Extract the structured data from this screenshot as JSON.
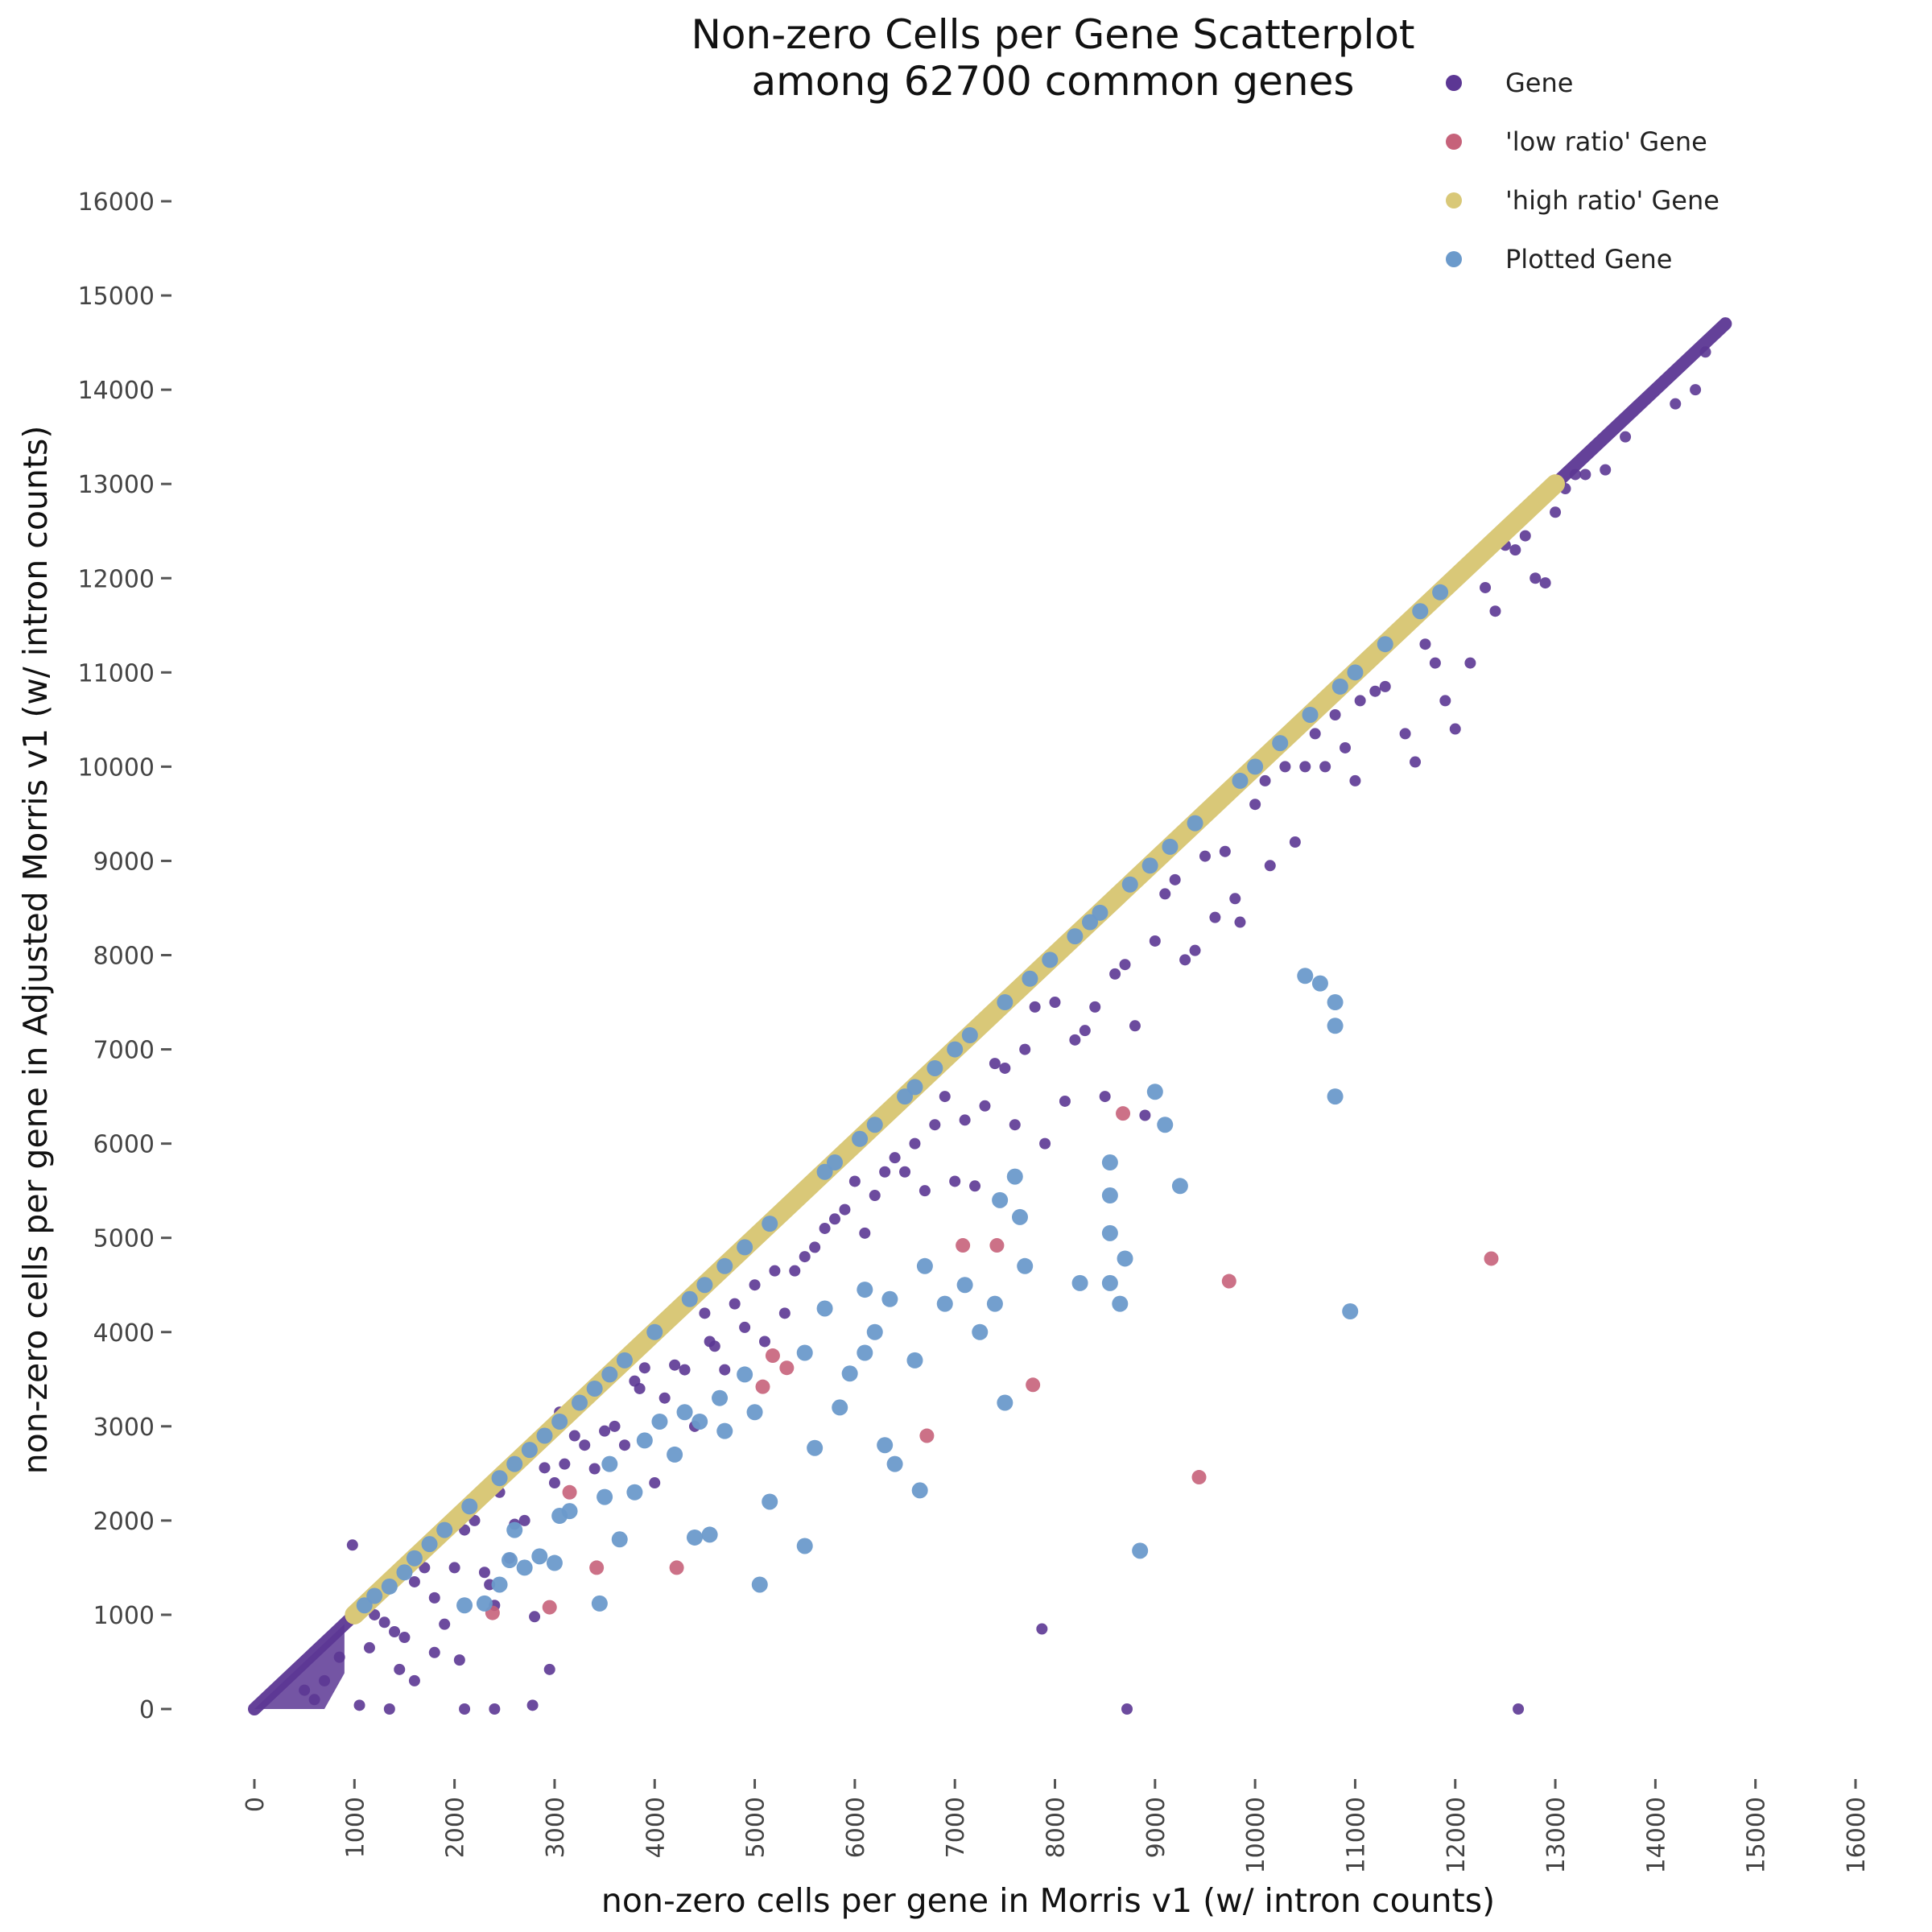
{
  "chart_data": {
    "type": "scatter",
    "title": [
      "Non-zero Cells per Gene Scatterplot",
      "among 62700 common genes"
    ],
    "xlabel": "non-zero cells per gene in Morris v1 (w/ intron counts)",
    "ylabel": "non-zero cells per gene in Adjusted Morris v1 (w/ intron counts)",
    "xlim": [
      0,
      16000
    ],
    "ylim": [
      0,
      16000
    ],
    "xticks": [
      0,
      1000,
      2000,
      3000,
      4000,
      5000,
      6000,
      7000,
      8000,
      9000,
      10000,
      11000,
      12000,
      13000,
      14000,
      15000,
      16000
    ],
    "yticks": [
      0,
      1000,
      2000,
      3000,
      4000,
      5000,
      6000,
      7000,
      8000,
      9000,
      10000,
      11000,
      12000,
      13000,
      14000,
      15000,
      16000
    ],
    "grid": false,
    "legend_position": "top-right",
    "series": [
      {
        "name": "Gene",
        "color": "#5c3794",
        "diagonal": [
          [
            0,
            0
          ],
          [
            14700,
            14700
          ]
        ],
        "points": [
          [
            980,
            1740
          ],
          [
            1100,
            1050
          ],
          [
            1200,
            1000
          ],
          [
            1300,
            920
          ],
          [
            1400,
            820
          ],
          [
            1500,
            760
          ],
          [
            1600,
            1350
          ],
          [
            1700,
            1500
          ],
          [
            1800,
            1180
          ],
          [
            1900,
            900
          ],
          [
            2000,
            1500
          ],
          [
            2050,
            520
          ],
          [
            2100,
            1900
          ],
          [
            2200,
            2000
          ],
          [
            2300,
            1450
          ],
          [
            2350,
            1320
          ],
          [
            2400,
            1100
          ],
          [
            2450,
            2300
          ],
          [
            2550,
            1600
          ],
          [
            2600,
            1960
          ],
          [
            2700,
            2000
          ],
          [
            2800,
            980
          ],
          [
            2900,
            2560
          ],
          [
            3000,
            2400
          ],
          [
            3050,
            3150
          ],
          [
            3100,
            2600
          ],
          [
            3200,
            2900
          ],
          [
            3300,
            2800
          ],
          [
            3400,
            2550
          ],
          [
            3500,
            2950
          ],
          [
            3600,
            3000
          ],
          [
            3700,
            2800
          ],
          [
            3800,
            3480
          ],
          [
            3850,
            3400
          ],
          [
            3900,
            3620
          ],
          [
            4000,
            2400
          ],
          [
            4100,
            3300
          ],
          [
            4200,
            3650
          ],
          [
            4300,
            3600
          ],
          [
            4400,
            3000
          ],
          [
            4500,
            4200
          ],
          [
            4550,
            3900
          ],
          [
            4600,
            3850
          ],
          [
            4700,
            3600
          ],
          [
            4800,
            4300
          ],
          [
            4900,
            4050
          ],
          [
            5000,
            4500
          ],
          [
            5100,
            3900
          ],
          [
            5200,
            4650
          ],
          [
            5300,
            4200
          ],
          [
            5400,
            4650
          ],
          [
            5500,
            4800
          ],
          [
            5600,
            4900
          ],
          [
            5700,
            5100
          ],
          [
            5800,
            5200
          ],
          [
            5900,
            5300
          ],
          [
            6000,
            5600
          ],
          [
            6100,
            5050
          ],
          [
            6200,
            5450
          ],
          [
            6300,
            5700
          ],
          [
            6400,
            5850
          ],
          [
            6500,
            5700
          ],
          [
            6600,
            6000
          ],
          [
            6700,
            5500
          ],
          [
            6800,
            6200
          ],
          [
            6900,
            6500
          ],
          [
            7000,
            5600
          ],
          [
            7100,
            6250
          ],
          [
            7200,
            5550
          ],
          [
            7300,
            6400
          ],
          [
            7400,
            6850
          ],
          [
            7500,
            6800
          ],
          [
            7600,
            6200
          ],
          [
            7700,
            7000
          ],
          [
            7800,
            7450
          ],
          [
            7900,
            6000
          ],
          [
            8000,
            7500
          ],
          [
            8100,
            6450
          ],
          [
            8200,
            7100
          ],
          [
            8300,
            7200
          ],
          [
            8400,
            7450
          ],
          [
            8500,
            6500
          ],
          [
            8600,
            7800
          ],
          [
            8700,
            7900
          ],
          [
            8800,
            7250
          ],
          [
            8900,
            6300
          ],
          [
            9000,
            8150
          ],
          [
            9100,
            8650
          ],
          [
            9200,
            8800
          ],
          [
            9300,
            7950
          ],
          [
            9400,
            8050
          ],
          [
            9500,
            9050
          ],
          [
            9600,
            8400
          ],
          [
            9700,
            9100
          ],
          [
            9800,
            8600
          ],
          [
            9850,
            8350
          ],
          [
            10000,
            9600
          ],
          [
            10100,
            9850
          ],
          [
            10150,
            8950
          ],
          [
            10300,
            10000
          ],
          [
            10400,
            9200
          ],
          [
            10500,
            10000
          ],
          [
            10600,
            10350
          ],
          [
            10700,
            10000
          ],
          [
            10800,
            10550
          ],
          [
            10900,
            10200
          ],
          [
            11000,
            9850
          ],
          [
            11050,
            10700
          ],
          [
            11200,
            10800
          ],
          [
            11300,
            10850
          ],
          [
            11500,
            10350
          ],
          [
            11600,
            10050
          ],
          [
            11700,
            11300
          ],
          [
            11800,
            11100
          ],
          [
            11900,
            10700
          ],
          [
            12000,
            10400
          ],
          [
            12150,
            11100
          ],
          [
            12300,
            11900
          ],
          [
            12400,
            11650
          ],
          [
            12500,
            12350
          ],
          [
            12600,
            12300
          ],
          [
            12700,
            12450
          ],
          [
            12800,
            12000
          ],
          [
            12900,
            11950
          ],
          [
            13000,
            12700
          ],
          [
            13100,
            12950
          ],
          [
            13200,
            13100
          ],
          [
            13300,
            13100
          ],
          [
            13500,
            13150
          ],
          [
            13700,
            13500
          ],
          [
            14200,
            13850
          ],
          [
            14400,
            14000
          ],
          [
            14500,
            14400
          ],
          [
            7870,
            850
          ],
          [
            8720,
            0
          ],
          [
            12630,
            0
          ],
          [
            1050,
            40
          ],
          [
            1350,
            0
          ],
          [
            1600,
            300
          ],
          [
            2100,
            0
          ],
          [
            2400,
            0
          ],
          [
            2780,
            40
          ],
          [
            2950,
            420
          ],
          [
            500,
            200
          ],
          [
            700,
            300
          ],
          [
            600,
            100
          ],
          [
            850,
            550
          ],
          [
            1150,
            650
          ],
          [
            1450,
            420
          ],
          [
            1800,
            600
          ]
        ]
      },
      {
        "name": "'low ratio' Gene",
        "color": "#c6627a",
        "points": [
          [
            2380,
            1020
          ],
          [
            2950,
            1080
          ],
          [
            3150,
            2300
          ],
          [
            3420,
            1500
          ],
          [
            4220,
            1500
          ],
          [
            5080,
            3420
          ],
          [
            5180,
            3750
          ],
          [
            5320,
            3620
          ],
          [
            6720,
            2900
          ],
          [
            7080,
            4920
          ],
          [
            7420,
            4920
          ],
          [
            7780,
            3440
          ],
          [
            8680,
            6320
          ],
          [
            9440,
            2460
          ],
          [
            9740,
            4540
          ],
          [
            12360,
            4780
          ]
        ]
      },
      {
        "name": "'high ratio' Gene",
        "color": "#d9c878",
        "band": [
          [
            1000,
            1000
          ],
          [
            13000,
            13000
          ]
        ]
      },
      {
        "name": "Plotted Gene",
        "color": "#6b9acb",
        "points": [
          [
            1100,
            1100
          ],
          [
            1200,
            1200
          ],
          [
            1350,
            1300
          ],
          [
            1500,
            1450
          ],
          [
            1600,
            1600
          ],
          [
            1750,
            1750
          ],
          [
            1900,
            1900
          ],
          [
            2150,
            2150
          ],
          [
            2450,
            2450
          ],
          [
            2600,
            2600
          ],
          [
            2750,
            2750
          ],
          [
            2900,
            2900
          ],
          [
            3050,
            3050
          ],
          [
            3250,
            3250
          ],
          [
            3400,
            3400
          ],
          [
            3550,
            3550
          ],
          [
            3700,
            3700
          ],
          [
            4000,
            4000
          ],
          [
            4350,
            4350
          ],
          [
            4500,
            4500
          ],
          [
            4700,
            4700
          ],
          [
            4900,
            4900
          ],
          [
            5150,
            5150
          ],
          [
            5700,
            5700
          ],
          [
            5800,
            5800
          ],
          [
            6050,
            6050
          ],
          [
            6200,
            6200
          ],
          [
            6500,
            6500
          ],
          [
            6600,
            6600
          ],
          [
            6800,
            6800
          ],
          [
            7000,
            7000
          ],
          [
            7150,
            7150
          ],
          [
            7500,
            7500
          ],
          [
            7750,
            7750
          ],
          [
            7950,
            7950
          ],
          [
            8200,
            8200
          ],
          [
            8350,
            8350
          ],
          [
            8450,
            8450
          ],
          [
            8750,
            8750
          ],
          [
            8950,
            8950
          ],
          [
            9150,
            9150
          ],
          [
            9400,
            9400
          ],
          [
            9850,
            9850
          ],
          [
            10000,
            10000
          ],
          [
            10250,
            10250
          ],
          [
            10550,
            10550
          ],
          [
            10850,
            10850
          ],
          [
            11000,
            11000
          ],
          [
            11300,
            11300
          ],
          [
            11650,
            11650
          ],
          [
            11850,
            11850
          ],
          [
            2100,
            1100
          ],
          [
            2300,
            1120
          ],
          [
            2450,
            1320
          ],
          [
            2550,
            1580
          ],
          [
            2600,
            1900
          ],
          [
            2700,
            1500
          ],
          [
            2850,
            1620
          ],
          [
            3000,
            1550
          ],
          [
            3050,
            2050
          ],
          [
            3150,
            2100
          ],
          [
            3450,
            1120
          ],
          [
            3500,
            2250
          ],
          [
            3550,
            2600
          ],
          [
            3650,
            1800
          ],
          [
            3800,
            2300
          ],
          [
            3900,
            2850
          ],
          [
            4050,
            3050
          ],
          [
            4200,
            2700
          ],
          [
            4300,
            3150
          ],
          [
            4450,
            3050
          ],
          [
            4400,
            1820
          ],
          [
            4550,
            1850
          ],
          [
            4650,
            3300
          ],
          [
            4700,
            2950
          ],
          [
            4900,
            3550
          ],
          [
            5000,
            3150
          ],
          [
            5050,
            1320
          ],
          [
            5150,
            2200
          ],
          [
            5500,
            1730
          ],
          [
            5500,
            3780
          ],
          [
            5600,
            2770
          ],
          [
            5700,
            4250
          ],
          [
            5850,
            3200
          ],
          [
            5950,
            3560
          ],
          [
            6100,
            3780
          ],
          [
            6100,
            4450
          ],
          [
            6200,
            4000
          ],
          [
            6300,
            2800
          ],
          [
            6350,
            4350
          ],
          [
            6400,
            2600
          ],
          [
            6600,
            3700
          ],
          [
            6650,
            2320
          ],
          [
            6700,
            4700
          ],
          [
            6900,
            4300
          ],
          [
            7100,
            4500
          ],
          [
            7250,
            4000
          ],
          [
            7400,
            4300
          ],
          [
            7500,
            3250
          ],
          [
            7600,
            5650
          ],
          [
            7700,
            4700
          ],
          [
            7650,
            5220
          ],
          [
            7450,
            5400
          ],
          [
            8250,
            4520
          ],
          [
            8550,
            4520
          ],
          [
            8550,
            5050
          ],
          [
            8550,
            5450
          ],
          [
            8550,
            5800
          ],
          [
            8650,
            4300
          ],
          [
            8700,
            4780
          ],
          [
            8850,
            1680
          ],
          [
            9000,
            6550
          ],
          [
            9100,
            6200
          ],
          [
            9250,
            5550
          ],
          [
            10500,
            7780
          ],
          [
            10650,
            7700
          ],
          [
            10800,
            7500
          ],
          [
            10800,
            7250
          ],
          [
            10800,
            6500
          ],
          [
            10950,
            4220
          ]
        ]
      }
    ]
  }
}
